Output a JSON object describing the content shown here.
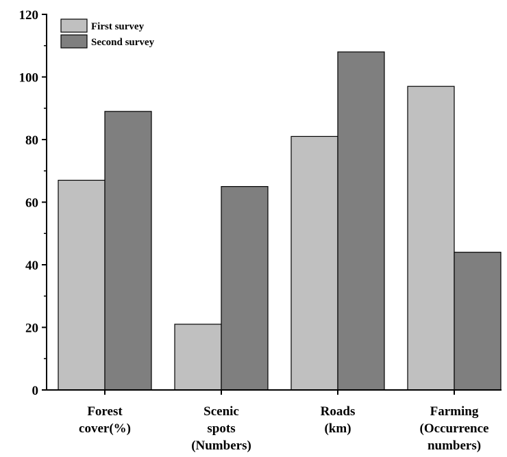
{
  "chart_data": {
    "type": "bar",
    "title": "",
    "xlabel": "",
    "ylabel": "",
    "categories": [
      [
        "Forest",
        "cover(%)"
      ],
      [
        "Scenic",
        "spots",
        "(Numbers)"
      ],
      [
        "Roads",
        "(km)"
      ],
      [
        "Farming",
        "(Occurrence",
        "numbers)"
      ]
    ],
    "series": [
      {
        "name": "First survey",
        "values": [
          67,
          21,
          81,
          97
        ],
        "color": "#c0c0c0"
      },
      {
        "name": "Second survey",
        "values": [
          89,
          65,
          108,
          44
        ],
        "color": "#7f7f7f"
      }
    ],
    "ylim": [
      0,
      120
    ],
    "yticks": [
      0,
      20,
      40,
      60,
      80,
      100,
      120
    ],
    "grid": false,
    "legend": "top-left",
    "bar_stroke": "#000000",
    "axis_color": "#000000"
  }
}
